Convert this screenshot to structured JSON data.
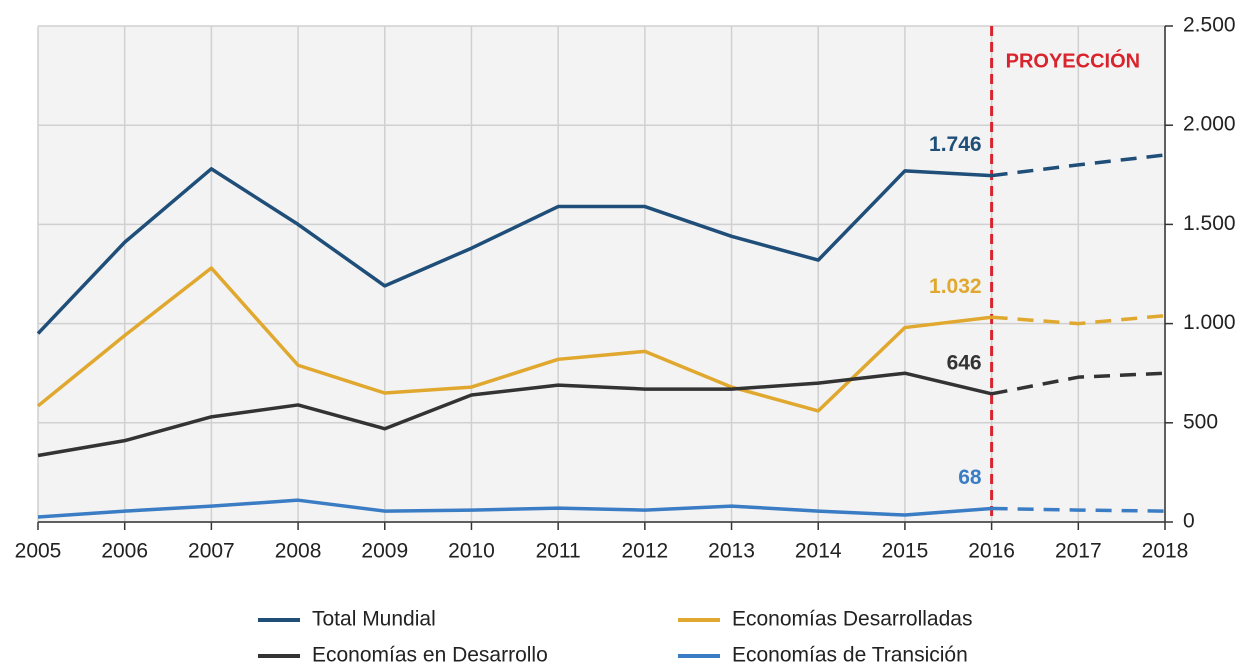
{
  "chart_data": {
    "type": "line",
    "x": [
      2005,
      2006,
      2007,
      2008,
      2009,
      2010,
      2011,
      2012,
      2013,
      2014,
      2015,
      2016,
      2017,
      2018
    ],
    "xlim": [
      2005,
      2018
    ],
    "xticks": [
      2005,
      2006,
      2007,
      2008,
      2009,
      2010,
      2011,
      2012,
      2013,
      2014,
      2015,
      2016,
      2017,
      2018
    ],
    "ylim": [
      0,
      2500
    ],
    "yticks": [
      0,
      500,
      {
        "value": 1000,
        "label": "1.000"
      },
      {
        "value": 1500,
        "label": "1.500"
      },
      {
        "value": 2000,
        "label": "2.000"
      },
      {
        "value": 2500,
        "label": "2.500"
      }
    ],
    "y_axis_side": "right",
    "grid": true,
    "projection": {
      "x": 2016,
      "label": "PROYECCIÓN",
      "color": "#d9232d"
    },
    "legend": "bottom",
    "series": [
      {
        "name": "Total Mundial",
        "color": "#1f4e79",
        "values": [
          950,
          1410,
          1780,
          1500,
          1190,
          1380,
          1590,
          1590,
          1440,
          1320,
          1770,
          1746,
          1800,
          1850
        ],
        "value_labels": [
          null,
          null,
          null,
          null,
          null,
          null,
          null,
          null,
          null,
          null,
          null,
          "1.746",
          null,
          null
        ]
      },
      {
        "name": "Economías Desarrolladas",
        "color": "#e0a82e",
        "values": [
          585,
          940,
          1280,
          790,
          650,
          680,
          820,
          860,
          680,
          560,
          980,
          1032,
          1000,
          1040
        ],
        "value_labels": [
          null,
          null,
          null,
          null,
          null,
          null,
          null,
          null,
          null,
          null,
          null,
          "1.032",
          null,
          null
        ]
      },
      {
        "name": "Economías en Desarrollo",
        "color": "#333333",
        "values": [
          335,
          410,
          530,
          590,
          470,
          640,
          690,
          670,
          670,
          700,
          750,
          646,
          730,
          750
        ],
        "value_labels": [
          null,
          null,
          null,
          null,
          null,
          null,
          null,
          null,
          null,
          null,
          null,
          "646",
          null,
          null
        ]
      },
      {
        "name": "Economías de Transición",
        "color": "#3b7dc4",
        "values": [
          25,
          55,
          80,
          110,
          55,
          60,
          70,
          60,
          80,
          55,
          35,
          68,
          60,
          55
        ],
        "value_labels": [
          null,
          null,
          null,
          null,
          null,
          null,
          null,
          null,
          null,
          null,
          null,
          "68",
          null,
          null
        ]
      }
    ]
  }
}
